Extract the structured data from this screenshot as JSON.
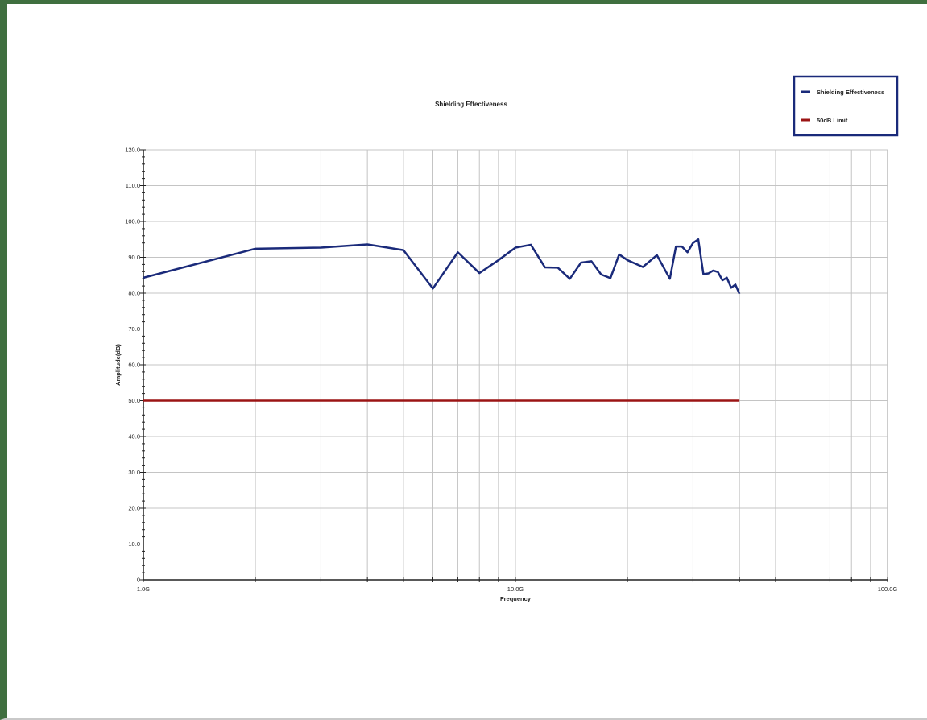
{
  "chart_data": {
    "type": "line",
    "title": "Shielding Effectiveness",
    "xlabel": "Frequency",
    "ylabel": "Amplitude(dB)",
    "x_scale": "log",
    "xlim": [
      1.0,
      100.0
    ],
    "ylim": [
      0,
      120
    ],
    "x_ticks": [
      {
        "value": 1.0,
        "label": "1.0G"
      },
      {
        "value": 10.0,
        "label": "10.0G"
      },
      {
        "value": 100.0,
        "label": "100.0G"
      }
    ],
    "y_ticks": [
      {
        "value": 0,
        "label": "0"
      },
      {
        "value": 10,
        "label": "10.0"
      },
      {
        "value": 20,
        "label": "20.0"
      },
      {
        "value": 30,
        "label": "30.0"
      },
      {
        "value": 40,
        "label": "40.0"
      },
      {
        "value": 50,
        "label": "50.0"
      },
      {
        "value": 60,
        "label": "60.0"
      },
      {
        "value": 70,
        "label": "70.0"
      },
      {
        "value": 80,
        "label": "80.0"
      },
      {
        "value": 90,
        "label": "90.0"
      },
      {
        "value": 100,
        "label": "100.0"
      },
      {
        "value": 110,
        "label": "110.0"
      },
      {
        "value": 120,
        "label": "120.0"
      }
    ],
    "grid": true,
    "legend_position": "top-right",
    "series": [
      {
        "name": "Shielding Effectiveness",
        "color": "#1a2a7a",
        "x": [
          1.0,
          2.0,
          3.0,
          4.0,
          5.0,
          6.0,
          7.0,
          8.0,
          9.0,
          10.0,
          11.0,
          12.0,
          13.0,
          14.0,
          15.0,
          16.0,
          17.0,
          18.0,
          19.0,
          20.0,
          22.0,
          24.0,
          26.0,
          27.0,
          28.0,
          29.0,
          30.0,
          31.0,
          32.0,
          33.0,
          34.0,
          35.0,
          36.0,
          37.0,
          38.0,
          39.0,
          40.0
        ],
        "y": [
          84.3,
          92.4,
          92.7,
          93.6,
          92.0,
          81.3,
          91.4,
          85.6,
          89.2,
          92.7,
          93.5,
          87.2,
          87.1,
          84.0,
          88.5,
          88.9,
          85.2,
          84.2,
          90.8,
          89.2,
          87.3,
          90.6,
          84.0,
          93.0,
          93.0,
          91.4,
          94.0,
          95.0,
          85.3,
          85.5,
          86.3,
          85.9,
          83.6,
          84.3,
          81.5,
          82.4,
          79.8
        ]
      },
      {
        "name": "50dB Limit",
        "color": "#9b1414",
        "x": [
          1.0,
          40.0
        ],
        "y": [
          50.0,
          50.0
        ]
      }
    ]
  }
}
